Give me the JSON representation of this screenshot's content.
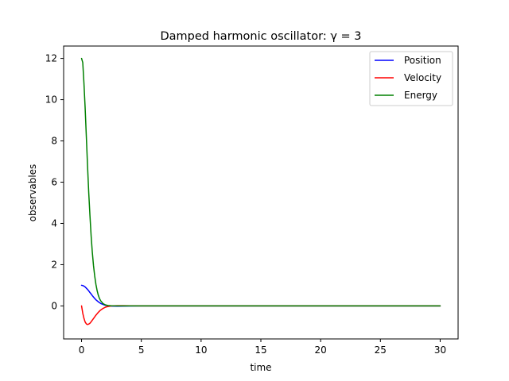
{
  "chart_data": {
    "type": "line",
    "title": "Damped harmonic oscillator: γ = 3",
    "xlabel": "time",
    "ylabel": "observables",
    "xlim": [
      -1.5,
      31.5
    ],
    "ylim": [
      -1.6,
      12.6
    ],
    "xticks": [
      0,
      5,
      10,
      15,
      20,
      25,
      30
    ],
    "yticks": [
      0,
      2,
      4,
      6,
      8,
      10,
      12
    ],
    "xtick_labels": [
      "0",
      "5",
      "10",
      "15",
      "20",
      "25",
      "30"
    ],
    "ytick_labels": [
      "0",
      "2",
      "4",
      "6",
      "8",
      "10",
      "12"
    ],
    "grid": false,
    "legend_position": "top-right",
    "series": [
      {
        "name": "Position",
        "color": "#0000ff",
        "x": [
          0,
          0.1,
          0.2,
          0.3,
          0.4,
          0.5,
          0.6,
          0.7,
          0.8,
          0.9,
          1.0,
          1.1,
          1.2,
          1.3,
          1.4,
          1.5,
          1.6,
          1.8,
          2.0,
          2.2,
          2.5,
          3.0,
          3.5,
          4.0,
          5.0,
          7.0,
          10.0,
          15.0,
          20.0,
          25.0,
          30.0
        ],
        "y": [
          1.0,
          0.99,
          0.96,
          0.92,
          0.86,
          0.8,
          0.73,
          0.65,
          0.58,
          0.5,
          0.43,
          0.36,
          0.3,
          0.25,
          0.2,
          0.16,
          0.12,
          0.07,
          0.03,
          0.01,
          -0.01,
          -0.015,
          -0.01,
          -0.005,
          0.0,
          0.0,
          0.0,
          0.0,
          0.0,
          0.0,
          0.0
        ]
      },
      {
        "name": "Velocity",
        "color": "#ff0000",
        "x": [
          0,
          0.1,
          0.2,
          0.3,
          0.4,
          0.5,
          0.6,
          0.7,
          0.8,
          0.9,
          1.0,
          1.1,
          1.2,
          1.3,
          1.4,
          1.5,
          1.6,
          1.8,
          2.0,
          2.2,
          2.5,
          3.0,
          3.5,
          4.0,
          5.0,
          7.0,
          10.0,
          15.0,
          20.0,
          25.0,
          30.0
        ],
        "y": [
          0.0,
          -0.35,
          -0.6,
          -0.78,
          -0.87,
          -0.9,
          -0.88,
          -0.84,
          -0.77,
          -0.69,
          -0.61,
          -0.53,
          -0.45,
          -0.38,
          -0.31,
          -0.25,
          -0.2,
          -0.12,
          -0.06,
          -0.03,
          0.0,
          0.01,
          0.01,
          0.005,
          0.0,
          0.0,
          0.0,
          0.0,
          0.0,
          0.0,
          0.0
        ]
      },
      {
        "name": "Energy",
        "color": "#008000",
        "x": [
          0,
          0.1,
          0.2,
          0.3,
          0.4,
          0.5,
          0.6,
          0.7,
          0.8,
          0.9,
          1.0,
          1.1,
          1.2,
          1.3,
          1.4,
          1.5,
          1.6,
          1.8,
          2.0,
          2.2,
          2.5,
          3.0,
          3.5,
          4.0,
          5.0,
          7.0,
          10.0,
          15.0,
          20.0,
          25.0,
          30.0
        ],
        "y": [
          12.0,
          11.8,
          10.8,
          9.6,
          8.2,
          6.8,
          5.5,
          4.4,
          3.4,
          2.6,
          1.95,
          1.45,
          1.05,
          0.75,
          0.52,
          0.36,
          0.25,
          0.11,
          0.05,
          0.02,
          0.005,
          0.0,
          0.0,
          0.0,
          0.0,
          0.0,
          0.0,
          0.0,
          0.0,
          0.0,
          0.0
        ]
      }
    ]
  }
}
